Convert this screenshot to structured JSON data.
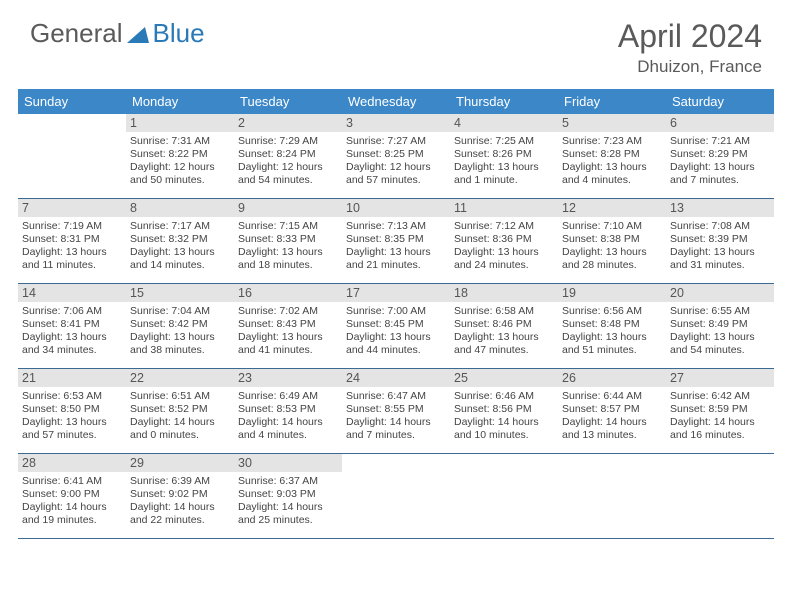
{
  "brand": {
    "part1": "General",
    "part2": "Blue"
  },
  "title": "April 2024",
  "location": "Dhuizon, France",
  "colors": {
    "header_bg": "#3b87c8",
    "header_text": "#ffffff",
    "daynum_bg": "#e4e4e4",
    "text": "#444444",
    "brand_gray": "#5a5a5a",
    "brand_blue": "#2a7ab8",
    "rule": "#3b6a92"
  },
  "day_names": [
    "Sunday",
    "Monday",
    "Tuesday",
    "Wednesday",
    "Thursday",
    "Friday",
    "Saturday"
  ],
  "weeks": [
    [
      {
        "n": "",
        "sr": "",
        "ss": "",
        "dl": ""
      },
      {
        "n": "1",
        "sr": "Sunrise: 7:31 AM",
        "ss": "Sunset: 8:22 PM",
        "dl": "Daylight: 12 hours and 50 minutes."
      },
      {
        "n": "2",
        "sr": "Sunrise: 7:29 AM",
        "ss": "Sunset: 8:24 PM",
        "dl": "Daylight: 12 hours and 54 minutes."
      },
      {
        "n": "3",
        "sr": "Sunrise: 7:27 AM",
        "ss": "Sunset: 8:25 PM",
        "dl": "Daylight: 12 hours and 57 minutes."
      },
      {
        "n": "4",
        "sr": "Sunrise: 7:25 AM",
        "ss": "Sunset: 8:26 PM",
        "dl": "Daylight: 13 hours and 1 minute."
      },
      {
        "n": "5",
        "sr": "Sunrise: 7:23 AM",
        "ss": "Sunset: 8:28 PM",
        "dl": "Daylight: 13 hours and 4 minutes."
      },
      {
        "n": "6",
        "sr": "Sunrise: 7:21 AM",
        "ss": "Sunset: 8:29 PM",
        "dl": "Daylight: 13 hours and 7 minutes."
      }
    ],
    [
      {
        "n": "7",
        "sr": "Sunrise: 7:19 AM",
        "ss": "Sunset: 8:31 PM",
        "dl": "Daylight: 13 hours and 11 minutes."
      },
      {
        "n": "8",
        "sr": "Sunrise: 7:17 AM",
        "ss": "Sunset: 8:32 PM",
        "dl": "Daylight: 13 hours and 14 minutes."
      },
      {
        "n": "9",
        "sr": "Sunrise: 7:15 AM",
        "ss": "Sunset: 8:33 PM",
        "dl": "Daylight: 13 hours and 18 minutes."
      },
      {
        "n": "10",
        "sr": "Sunrise: 7:13 AM",
        "ss": "Sunset: 8:35 PM",
        "dl": "Daylight: 13 hours and 21 minutes."
      },
      {
        "n": "11",
        "sr": "Sunrise: 7:12 AM",
        "ss": "Sunset: 8:36 PM",
        "dl": "Daylight: 13 hours and 24 minutes."
      },
      {
        "n": "12",
        "sr": "Sunrise: 7:10 AM",
        "ss": "Sunset: 8:38 PM",
        "dl": "Daylight: 13 hours and 28 minutes."
      },
      {
        "n": "13",
        "sr": "Sunrise: 7:08 AM",
        "ss": "Sunset: 8:39 PM",
        "dl": "Daylight: 13 hours and 31 minutes."
      }
    ],
    [
      {
        "n": "14",
        "sr": "Sunrise: 7:06 AM",
        "ss": "Sunset: 8:41 PM",
        "dl": "Daylight: 13 hours and 34 minutes."
      },
      {
        "n": "15",
        "sr": "Sunrise: 7:04 AM",
        "ss": "Sunset: 8:42 PM",
        "dl": "Daylight: 13 hours and 38 minutes."
      },
      {
        "n": "16",
        "sr": "Sunrise: 7:02 AM",
        "ss": "Sunset: 8:43 PM",
        "dl": "Daylight: 13 hours and 41 minutes."
      },
      {
        "n": "17",
        "sr": "Sunrise: 7:00 AM",
        "ss": "Sunset: 8:45 PM",
        "dl": "Daylight: 13 hours and 44 minutes."
      },
      {
        "n": "18",
        "sr": "Sunrise: 6:58 AM",
        "ss": "Sunset: 8:46 PM",
        "dl": "Daylight: 13 hours and 47 minutes."
      },
      {
        "n": "19",
        "sr": "Sunrise: 6:56 AM",
        "ss": "Sunset: 8:48 PM",
        "dl": "Daylight: 13 hours and 51 minutes."
      },
      {
        "n": "20",
        "sr": "Sunrise: 6:55 AM",
        "ss": "Sunset: 8:49 PM",
        "dl": "Daylight: 13 hours and 54 minutes."
      }
    ],
    [
      {
        "n": "21",
        "sr": "Sunrise: 6:53 AM",
        "ss": "Sunset: 8:50 PM",
        "dl": "Daylight: 13 hours and 57 minutes."
      },
      {
        "n": "22",
        "sr": "Sunrise: 6:51 AM",
        "ss": "Sunset: 8:52 PM",
        "dl": "Daylight: 14 hours and 0 minutes."
      },
      {
        "n": "23",
        "sr": "Sunrise: 6:49 AM",
        "ss": "Sunset: 8:53 PM",
        "dl": "Daylight: 14 hours and 4 minutes."
      },
      {
        "n": "24",
        "sr": "Sunrise: 6:47 AM",
        "ss": "Sunset: 8:55 PM",
        "dl": "Daylight: 14 hours and 7 minutes."
      },
      {
        "n": "25",
        "sr": "Sunrise: 6:46 AM",
        "ss": "Sunset: 8:56 PM",
        "dl": "Daylight: 14 hours and 10 minutes."
      },
      {
        "n": "26",
        "sr": "Sunrise: 6:44 AM",
        "ss": "Sunset: 8:57 PM",
        "dl": "Daylight: 14 hours and 13 minutes."
      },
      {
        "n": "27",
        "sr": "Sunrise: 6:42 AM",
        "ss": "Sunset: 8:59 PM",
        "dl": "Daylight: 14 hours and 16 minutes."
      }
    ],
    [
      {
        "n": "28",
        "sr": "Sunrise: 6:41 AM",
        "ss": "Sunset: 9:00 PM",
        "dl": "Daylight: 14 hours and 19 minutes."
      },
      {
        "n": "29",
        "sr": "Sunrise: 6:39 AM",
        "ss": "Sunset: 9:02 PM",
        "dl": "Daylight: 14 hours and 22 minutes."
      },
      {
        "n": "30",
        "sr": "Sunrise: 6:37 AM",
        "ss": "Sunset: 9:03 PM",
        "dl": "Daylight: 14 hours and 25 minutes."
      },
      {
        "n": "",
        "sr": "",
        "ss": "",
        "dl": ""
      },
      {
        "n": "",
        "sr": "",
        "ss": "",
        "dl": ""
      },
      {
        "n": "",
        "sr": "",
        "ss": "",
        "dl": ""
      },
      {
        "n": "",
        "sr": "",
        "ss": "",
        "dl": ""
      }
    ]
  ]
}
